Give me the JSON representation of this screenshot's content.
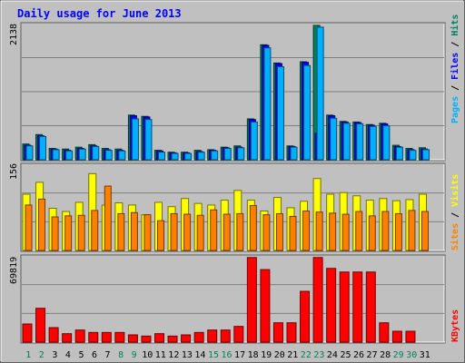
{
  "chart_data": {
    "type": "bar",
    "title": "Daily usage for June 2013",
    "days": [
      "1",
      "2",
      "3",
      "4",
      "5",
      "6",
      "7",
      "8",
      "9",
      "10",
      "11",
      "12",
      "13",
      "14",
      "15",
      "16",
      "17",
      "18",
      "19",
      "20",
      "21",
      "22",
      "23",
      "24",
      "25",
      "26",
      "27",
      "28",
      "29",
      "30",
      "31"
    ],
    "weekend_days": [
      "1",
      "2",
      "8",
      "9",
      "15",
      "16",
      "22",
      "23",
      "29",
      "30"
    ],
    "panels": [
      {
        "id": "top",
        "max_label": "2138",
        "ymax": 2138,
        "series": [
          {
            "name": "Hits",
            "color": "#00805c",
            "values": [
              250,
              400,
              180,
              170,
              200,
              240,
              180,
              170,
              710,
              690,
              150,
              120,
              120,
              150,
              160,
              200,
              220,
              650,
              1830,
              1540,
              220,
              1560,
              2138,
              710,
              610,
              600,
              560,
              580,
              230,
              180,
              190
            ]
          },
          {
            "name": "Files",
            "color": "#0000ff",
            "values": [
              230,
              380,
              170,
              150,
              180,
              220,
              160,
              150,
              700,
              680,
              140,
              110,
              110,
              130,
              150,
              190,
              200,
              640,
              1820,
              1530,
              210,
              1550,
              420,
              700,
              600,
              590,
              550,
              570,
              210,
              160,
              170
            ]
          },
          {
            "name": "Pages",
            "color": "#00b0ff",
            "values": [
              220,
              370,
              160,
              140,
              170,
              210,
              150,
              140,
              650,
              640,
              120,
              100,
              100,
              120,
              140,
              180,
              190,
              600,
              1780,
              1480,
              200,
              1500,
              2110,
              660,
              580,
              570,
              530,
              540,
              200,
              150,
              160
            ]
          }
        ]
      },
      {
        "id": "mid",
        "max_label": "156",
        "ymax": 156,
        "series": [
          {
            "name": "Visits",
            "color": "#ffff00",
            "values": [
              104,
              126,
              78,
              72,
              89,
              142,
              84,
              88,
              84,
              66,
              89,
              81,
              96,
              87,
              84,
              93,
              111,
              93,
              73,
              98,
              79,
              91,
              133,
              104,
              107,
              101,
              93,
              96,
              92,
              94,
              104
            ]
          },
          {
            "name": "Sites",
            "color": "#ff8000",
            "values": [
              84,
              95,
              62,
              64,
              65,
              74,
              119,
              68,
              70,
              66,
              55,
              68,
              67,
              65,
              75,
              67,
              68,
              83,
              66,
              68,
              63,
              73,
              71,
              69,
              67,
              72,
              64,
              72,
              68,
              74,
              72
            ]
          }
        ]
      },
      {
        "id": "bot",
        "max_label": "69819",
        "ymax": 69819,
        "series": [
          {
            "name": "KBytes",
            "color": "#ff0000",
            "values": [
              15000,
              28000,
              12000,
              7000,
              10000,
              8000,
              8000,
              8000,
              6000,
              5000,
              7000,
              5000,
              6000,
              8000,
              10000,
              10000,
              13000,
              70000,
              60000,
              16000,
              16000,
              42000,
              70000,
              61000,
              58000,
              58000,
              58000,
              16000,
              9000,
              9000,
              0
            ]
          }
        ]
      }
    ]
  },
  "labels": {
    "pages": "Pages",
    "files": "Files",
    "hits": "Hits",
    "visits": "Visits",
    "sites": "Sites",
    "kbytes": "KBytes",
    "slash": " / "
  },
  "colors": {
    "title": "#0000ff",
    "frame_light": "#ffffff",
    "frame_dark": "#606060",
    "panel_bg": "#c0c0c0",
    "gridline": "#808080",
    "weekday": "#000000",
    "weekend": "#00805c"
  }
}
